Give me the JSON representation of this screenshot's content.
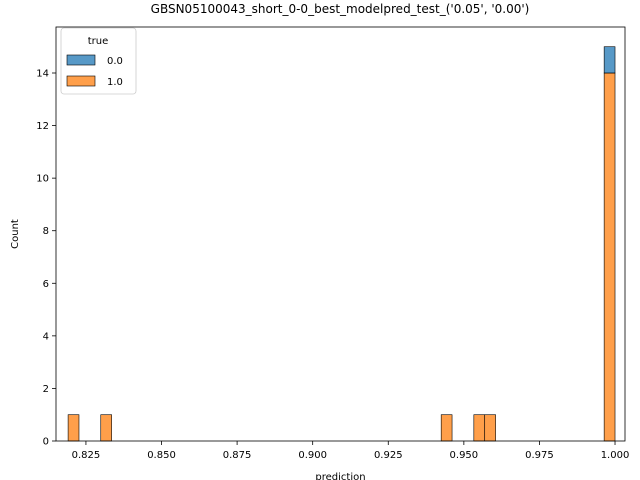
{
  "chart_data": {
    "type": "histogram",
    "title": "GBSN05100043_short_0-0_best_modelpred_test_('0.05', '0.00')",
    "xlabel": "prediction",
    "ylabel": "Count",
    "xlim": [
      0.8151,
      1.0033
    ],
    "ylim": [
      0,
      15.75
    ],
    "x_ticks": [
      0.825,
      0.85,
      0.875,
      0.9,
      0.925,
      0.95,
      0.975,
      1.0
    ],
    "x_tick_labels": [
      "0.825",
      "0.850",
      "0.875",
      "0.900",
      "0.925",
      "0.950",
      "0.975",
      "1.000"
    ],
    "y_ticks": [
      0,
      2,
      4,
      6,
      8,
      10,
      12,
      14
    ],
    "y_tick_labels": [
      "0",
      "2",
      "4",
      "6",
      "8",
      "10",
      "12",
      "14"
    ],
    "bin_width": 0.0036,
    "stacked": true,
    "legend": {
      "title": "true",
      "position": "top-left"
    },
    "series": [
      {
        "name": "1.0",
        "color": "#ff7f0e",
        "bins": [
          {
            "x0": 0.8191,
            "count": 1
          },
          {
            "x0": 0.8299,
            "count": 1
          },
          {
            "x0": 0.9425,
            "count": 1
          },
          {
            "x0": 0.9533,
            "count": 1
          },
          {
            "x0": 0.9569,
            "count": 1
          },
          {
            "x0": 0.9964,
            "count": 14
          }
        ]
      },
      {
        "name": "0.0",
        "color": "#1f77b4",
        "bins": [
          {
            "x0": 0.9964,
            "count": 1
          }
        ]
      }
    ],
    "legend_order": [
      "0.0",
      "1.0"
    ]
  }
}
